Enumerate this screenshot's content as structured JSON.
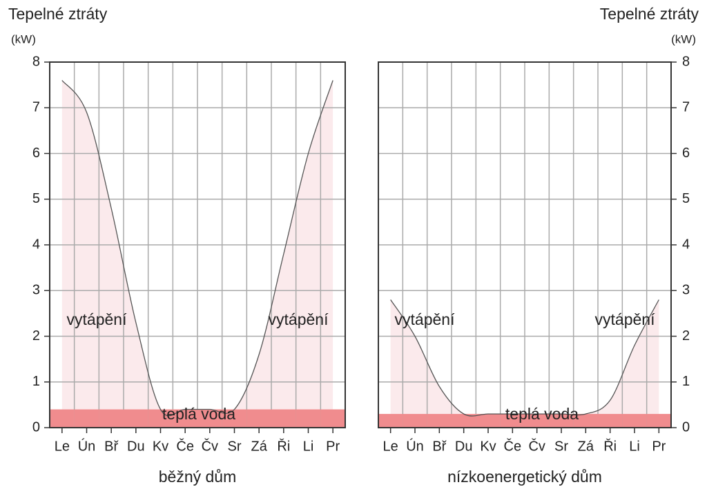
{
  "chart_data": [
    {
      "type": "area",
      "title": "běžný dům",
      "ylabel": "Tepelné ztráty",
      "yunit": "(kW)",
      "yaxis_side": "left",
      "categories": [
        "Le",
        "Ún",
        "Bř",
        "Du",
        "Kv",
        "Če",
        "Čv",
        "Sr",
        "Zá",
        "Ři",
        "Li",
        "Pr"
      ],
      "ylim": [
        0,
        8
      ],
      "yticks": [
        0,
        1,
        2,
        3,
        4,
        5,
        6,
        7,
        8
      ],
      "grid": true,
      "series": [
        {
          "values": [
            7.6,
            6.9,
            4.8,
            2.3,
            0.4,
            0.4,
            0.4,
            0.4,
            1.6,
            3.8,
            6.0,
            7.6
          ],
          "color": "#fbeaec"
        },
        {
          "values": [
            0.4,
            0.4,
            0.4,
            0.4,
            0.4,
            0.4,
            0.4,
            0.4,
            0.4,
            0.4,
            0.4,
            0.4
          ],
          "color": "#f08c8e"
        }
      ],
      "annotations": [
        "vytápění",
        "vytápění",
        "teplá voda"
      ]
    },
    {
      "type": "area",
      "title": "nízkoenergetický dům",
      "ylabel": "Tepelné ztráty",
      "yunit": "(kW)",
      "yaxis_side": "right",
      "categories": [
        "Le",
        "Ún",
        "Bř",
        "Du",
        "Kv",
        "Če",
        "Čv",
        "Sr",
        "Zá",
        "Ři",
        "Li",
        "Pr"
      ],
      "ylim": [
        0,
        8
      ],
      "yticks": [
        0,
        1,
        2,
        3,
        4,
        5,
        6,
        7,
        8
      ],
      "grid": true,
      "series": [
        {
          "values": [
            2.8,
            2.0,
            0.9,
            0.3,
            0.3,
            0.3,
            0.3,
            0.3,
            0.3,
            0.6,
            1.8,
            2.8
          ],
          "color": "#fbeaec"
        },
        {
          "values": [
            0.3,
            0.3,
            0.3,
            0.3,
            0.3,
            0.3,
            0.3,
            0.3,
            0.3,
            0.3,
            0.3,
            0.3
          ],
          "color": "#f08c8e"
        }
      ],
      "annotations": [
        "vytápění",
        "vytápění",
        "teplá voda"
      ]
    }
  ]
}
